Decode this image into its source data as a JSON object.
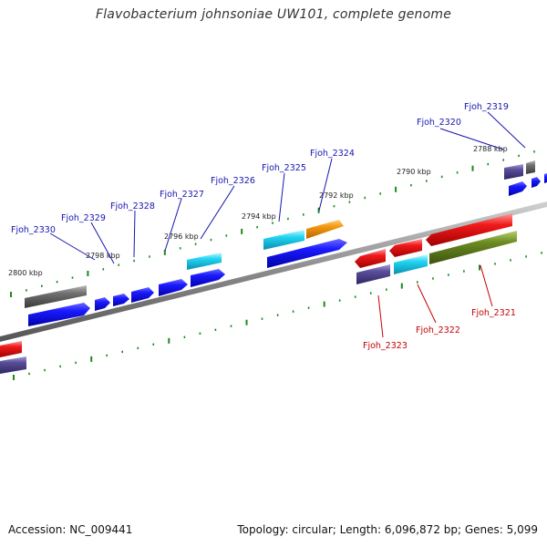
{
  "title": "Flavobacterium johnsoniae UW101, complete genome",
  "footer": {
    "accession": "Accession: NC_009441",
    "summary": "Topology: circular; Length: 6,096,872 bp; Genes: 5,099"
  },
  "colors": {
    "backbone": "#8a8a8a",
    "tick": "#1a8a1a",
    "forward_label": "#1515b0",
    "reverse_label": "#c40000",
    "gene_blue": "#1010e0",
    "gene_cyan": "#19c6e8",
    "gene_orange": "#f08a00",
    "gene_gray": "#707070",
    "gene_red": "#e81818",
    "gene_purple": "#5a4e9a",
    "gene_olive": "#6b8a20"
  },
  "kbp_labels": [
    "2800 kbp",
    "2798 kbp",
    "2796 kbp",
    "2794 kbp",
    "2792 kbp",
    "2790 kbp",
    "2788 kbp"
  ],
  "forward_labels": [
    "Fjoh_2330",
    "Fjoh_2329",
    "Fjoh_2328",
    "Fjoh_2327",
    "Fjoh_2326",
    "Fjoh_2325",
    "Fjoh_2324",
    "Fjoh_2320",
    "Fjoh_2319"
  ],
  "reverse_labels": [
    "Fjoh_2323",
    "Fjoh_2322",
    "Fjoh_2321"
  ]
}
